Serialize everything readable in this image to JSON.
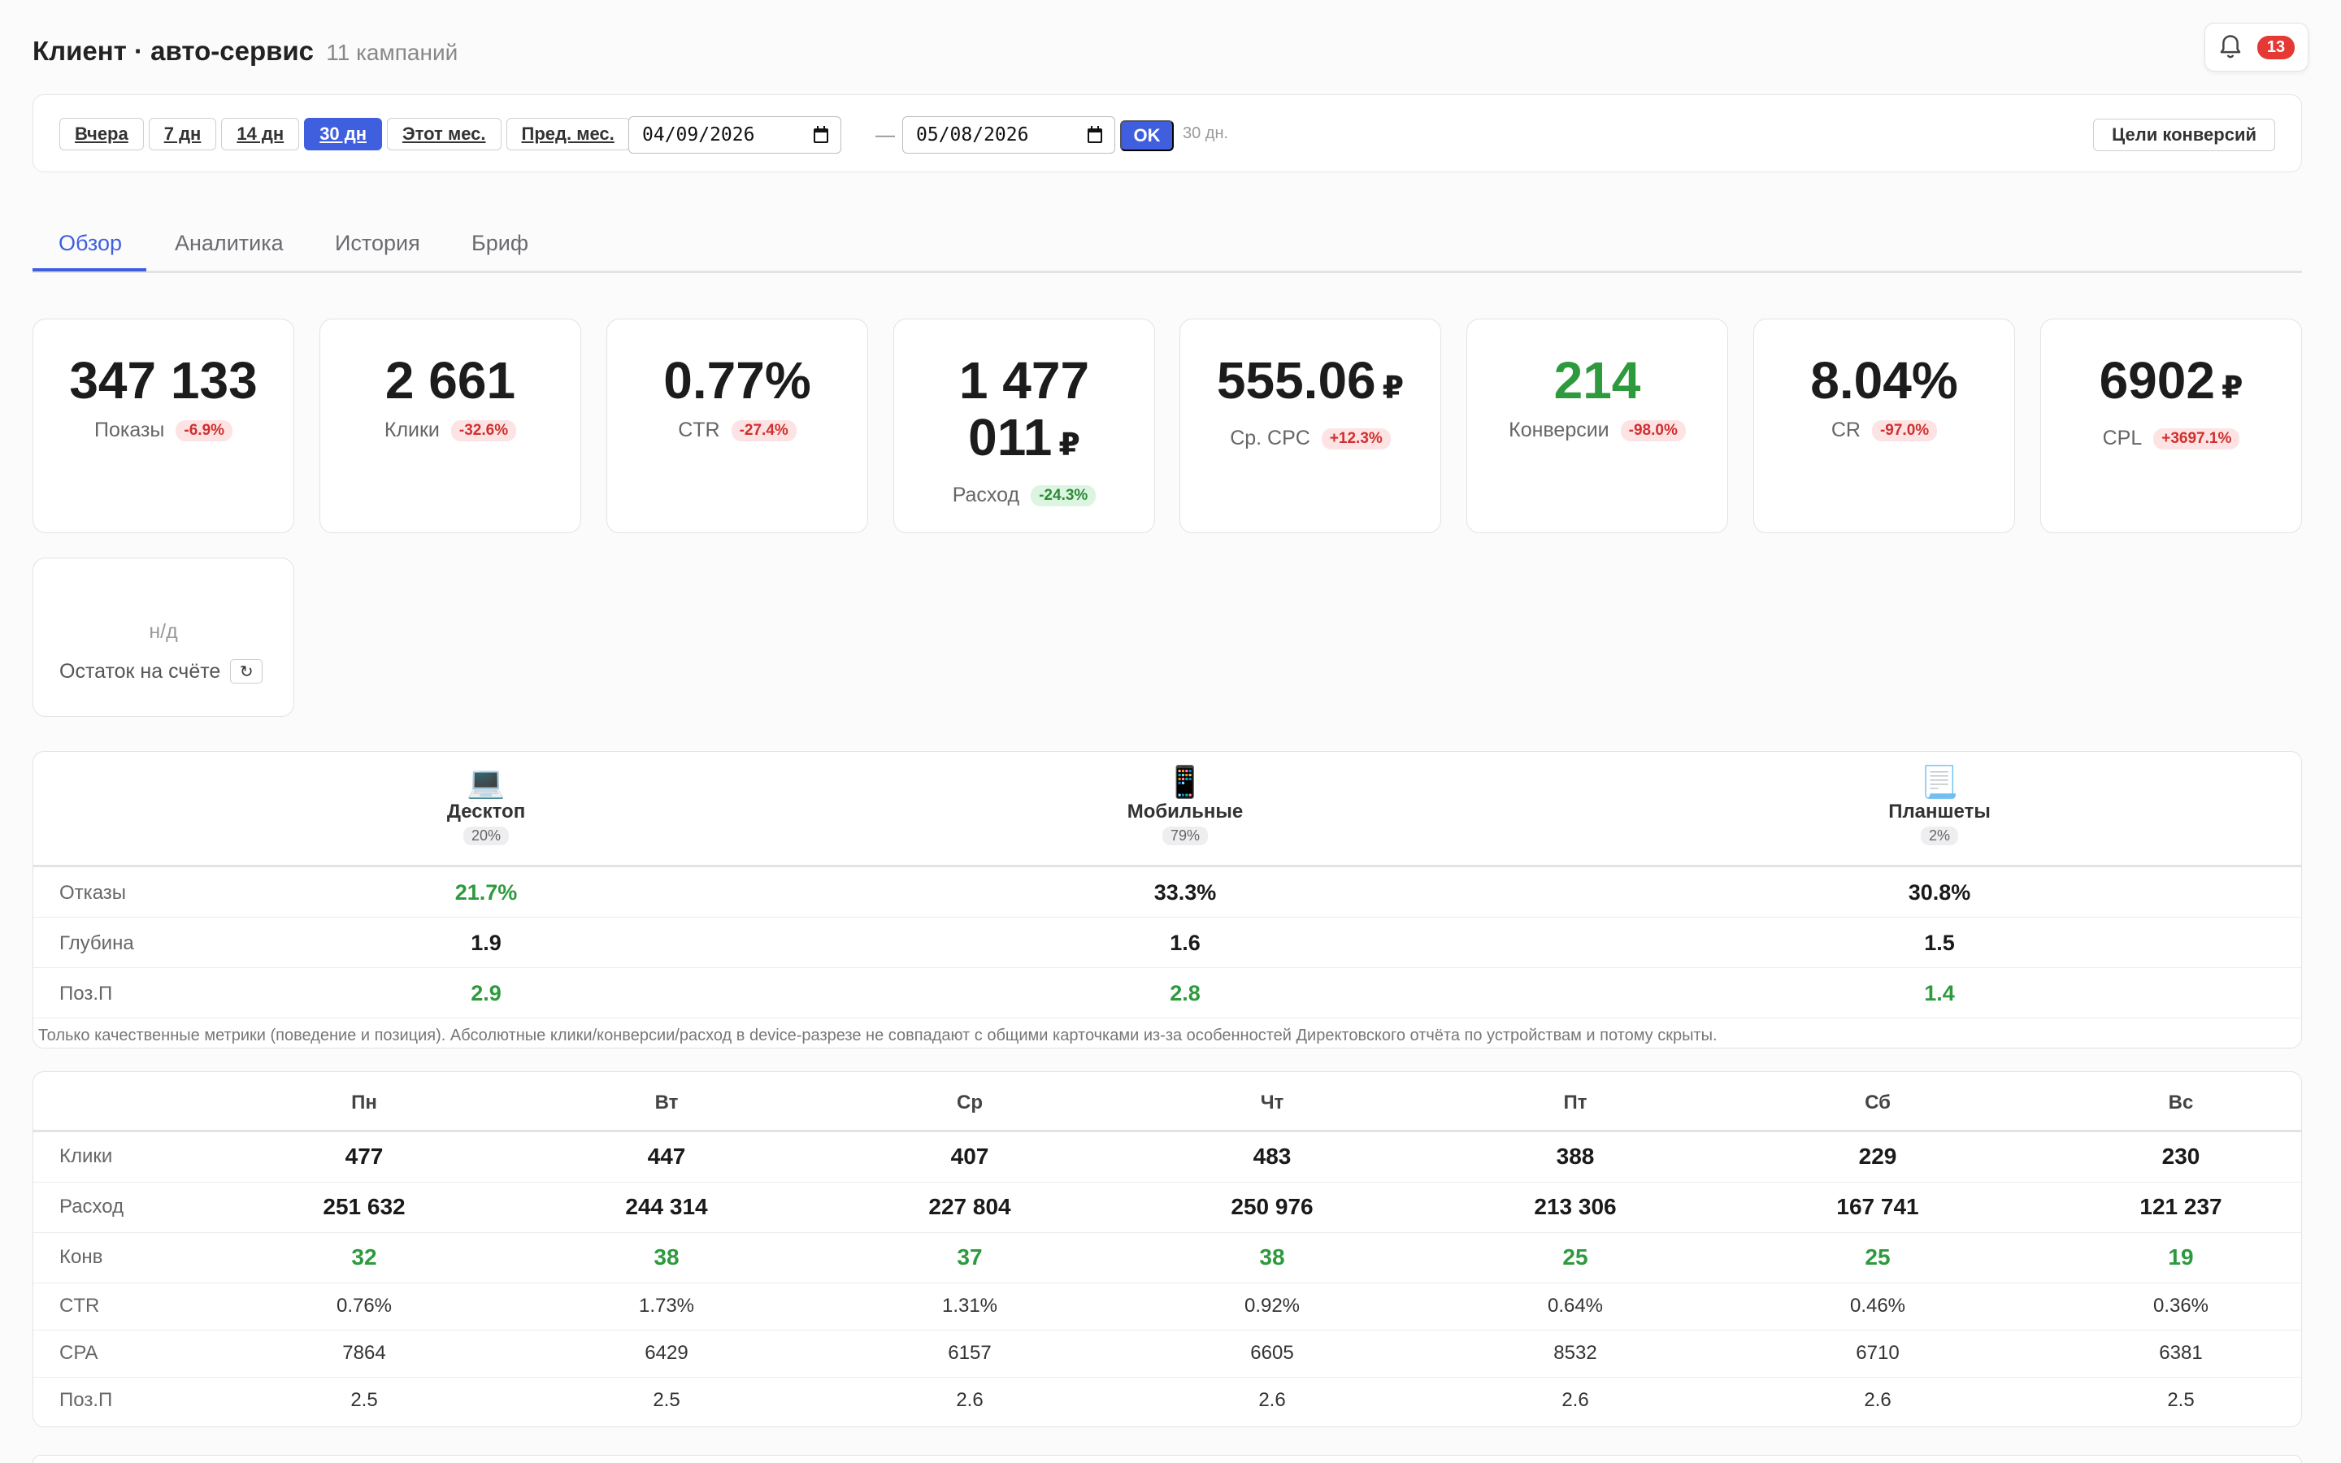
{
  "header": {
    "title": "Клиент · авто-сервис",
    "subtitle": "11 кампаний",
    "notifications": "13"
  },
  "toolbar": {
    "ranges": [
      "Вчера",
      "7 дн",
      "14 дн",
      "30 дн",
      "Этот мес.",
      "Пред. мес."
    ],
    "active_range": "30 дн",
    "date_from": "04/09/2026",
    "date_to": "05/08/2026",
    "dash": "—",
    "ok_label": "OK",
    "days_label": "30 дн.",
    "goals_label": "Цели конверсий"
  },
  "tabs": [
    "Обзор",
    "Аналитика",
    "История",
    "Бриф"
  ],
  "kpis": [
    {
      "value": "347 133",
      "currency": "",
      "label": "Показы",
      "delta": "-6.9%"
    },
    {
      "value": "2 661",
      "currency": "",
      "label": "Клики",
      "delta": "-32.6%"
    },
    {
      "value": "0.77%",
      "currency": "",
      "label": "CTR",
      "delta": "-27.4%"
    },
    {
      "value1": "1 477",
      "value2": "011",
      "currency": "₽",
      "label": "Расход",
      "delta": "-24.3%"
    },
    {
      "value": "555.06",
      "currency": "₽",
      "label": "Ср. CPC",
      "delta": "+12.3%"
    },
    {
      "value": "214",
      "currency": "",
      "label": "Конверсии",
      "delta": "-98.0%"
    },
    {
      "value": "8.04%",
      "currency": "",
      "label": "CR",
      "delta": "-97.0%"
    },
    {
      "value": "6902",
      "currency": "₽",
      "label": "CPL",
      "delta": "+3697.1%"
    }
  ],
  "balance": {
    "value": "н/д",
    "label": "Остаток на счёте",
    "refresh": "↻"
  },
  "devices": {
    "columns": [
      {
        "icon": "💻",
        "name": "Десктоп",
        "share": "20%"
      },
      {
        "icon": "📱",
        "name": "Мобильные",
        "share": "79%"
      },
      {
        "icon": "📃",
        "name": "Планшеты",
        "share": "2%"
      }
    ],
    "rows": [
      {
        "label": "Отказы",
        "values": [
          "21.7%",
          "33.3%",
          "30.8%"
        ]
      },
      {
        "label": "Глубина",
        "values": [
          "1.9",
          "1.6",
          "1.5"
        ]
      },
      {
        "label": "Поз.П",
        "values": [
          "2.9",
          "2.8",
          "1.4"
        ]
      }
    ],
    "note": "Только качественные метрики (поведение и позиция). Абсолютные клики/конверсии/расход в device-разрезе не совпадают с общими карточками из-за особенностей Директовского отчёта по устройствам и потому скрыты."
  },
  "weekdays": {
    "days": [
      "Пн",
      "Вт",
      "Ср",
      "Чт",
      "Пт",
      "Сб",
      "Вс"
    ],
    "rows": [
      {
        "label": "Клики",
        "values": [
          "477",
          "447",
          "407",
          "483",
          "388",
          "229",
          "230"
        ]
      },
      {
        "label": "Расход",
        "values": [
          "251 632",
          "244 314",
          "227 804",
          "250 976",
          "213 306",
          "167 741",
          "121 237"
        ]
      },
      {
        "label": "Конв",
        "values": [
          "32",
          "38",
          "37",
          "38",
          "25",
          "25",
          "19"
        ]
      },
      {
        "label": "CTR",
        "values": [
          "0.76%",
          "1.73%",
          "1.31%",
          "0.92%",
          "0.64%",
          "0.46%",
          "0.36%"
        ]
      },
      {
        "label": "CPA",
        "values": [
          "7864",
          "6429",
          "6157",
          "6605",
          "8532",
          "6710",
          "6381"
        ]
      },
      {
        "label": "Поз.П",
        "values": [
          "2.5",
          "2.5",
          "2.6",
          "2.6",
          "2.6",
          "2.6",
          "2.5"
        ]
      }
    ]
  },
  "colors": {
    "accent": "#3f5fdf",
    "good": "#2e9a3e",
    "bad": "#d12f2f"
  }
}
